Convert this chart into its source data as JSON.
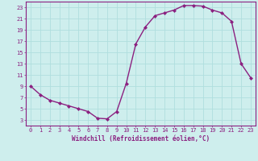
{
  "x": [
    0,
    1,
    2,
    3,
    4,
    5,
    6,
    7,
    8,
    9,
    10,
    11,
    12,
    13,
    14,
    15,
    16,
    17,
    18,
    19,
    20,
    21,
    22,
    23
  ],
  "y": [
    9,
    7.5,
    6.5,
    6,
    5.5,
    5,
    4.5,
    3.3,
    3.2,
    4.5,
    9.5,
    16.5,
    19.5,
    21.5,
    22,
    22.5,
    23.3,
    23.3,
    23.2,
    22.5,
    22,
    20.5,
    13,
    10.5
  ],
  "line_color": "#8b2080",
  "marker": "D",
  "markersize": 2.0,
  "linewidth": 1.0,
  "xlabel": "Windchill (Refroidissement éolien,°C)",
  "xlabel_fontsize": 5.5,
  "bg_color": "#ceeeed",
  "grid_color": "#b0dede",
  "yticks": [
    3,
    5,
    7,
    9,
    11,
    13,
    15,
    17,
    19,
    21,
    23
  ],
  "xticks": [
    0,
    1,
    2,
    3,
    4,
    5,
    6,
    7,
    8,
    9,
    10,
    11,
    12,
    13,
    14,
    15,
    16,
    17,
    18,
    19,
    20,
    21,
    22,
    23
  ],
  "ylim": [
    2,
    24
  ],
  "xlim": [
    -0.5,
    23.5
  ],
  "tick_fontsize": 5,
  "tick_color": "#8b2080",
  "spine_color": "#8b2080"
}
